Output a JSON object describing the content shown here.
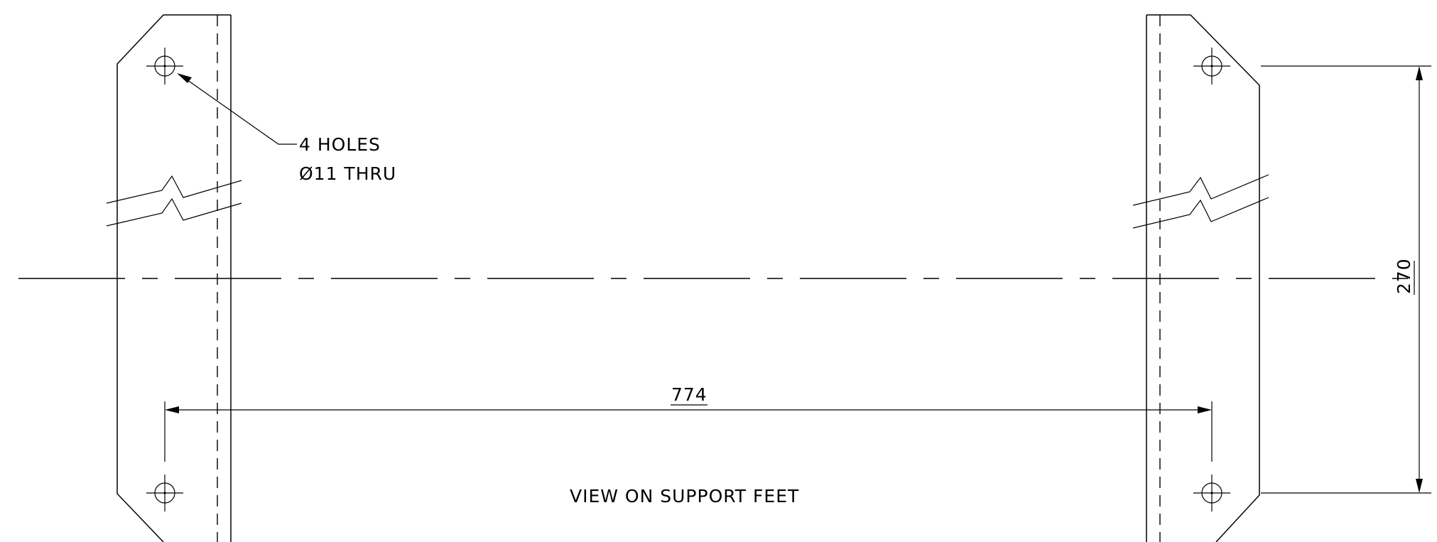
{
  "title": "VIEW ON SUPPORT FEET",
  "hole_note": {
    "line1": "4 HOLES",
    "line2": "Ø11 THRU"
  },
  "dimensions": {
    "horizontal_spacing": "774",
    "vertical_spacing": "270"
  }
}
